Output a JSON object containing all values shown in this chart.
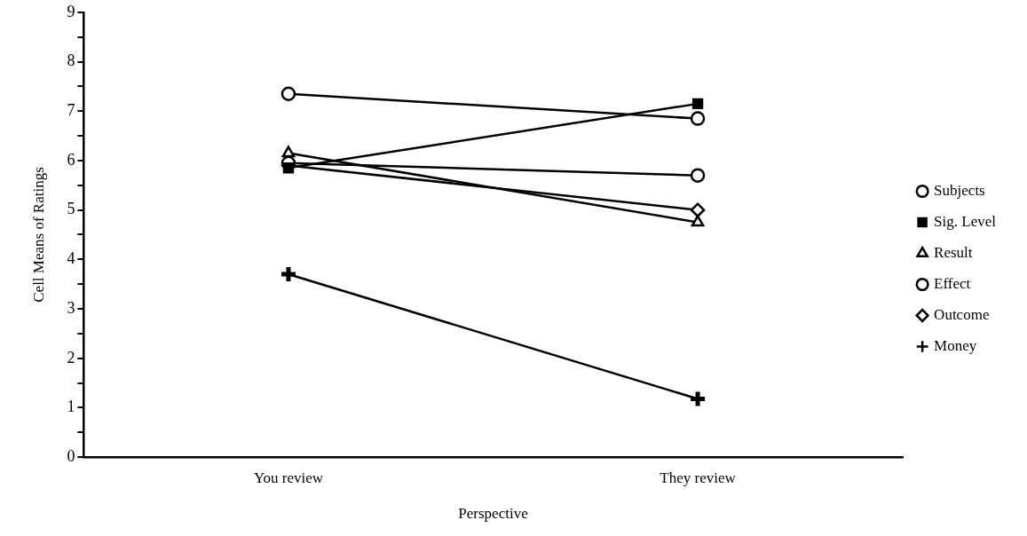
{
  "chart_data": {
    "type": "line",
    "xlabel": "Perspective",
    "ylabel": "Cell Means of Ratings",
    "categories": [
      "You review",
      "They review"
    ],
    "series": [
      {
        "name": "Subjects",
        "color": "#000000",
        "marker": "circle",
        "values": [
          7.35,
          6.85
        ]
      },
      {
        "name": "Sig. Level",
        "color": "#000000",
        "marker": "square",
        "values": [
          5.85,
          7.15
        ]
      },
      {
        "name": "Result",
        "color": "#000000",
        "marker": "triangle",
        "values": [
          6.15,
          4.75
        ]
      },
      {
        "name": "Effect",
        "color": "#000000",
        "marker": "circle",
        "values": [
          5.95,
          5.7
        ]
      },
      {
        "name": "Outcome",
        "color": "#000000",
        "marker": "diamond",
        "values": [
          5.9,
          5.0
        ]
      },
      {
        "name": "Money",
        "color": "#000000",
        "marker": "cross",
        "values": [
          3.7,
          1.18
        ]
      }
    ],
    "ylim": [
      0,
      9
    ],
    "yticks": [
      0,
      {
        "value": 0.5,
        "label": null
      },
      1,
      {
        "value": 1.5,
        "label": null
      },
      2,
      {
        "value": 2.5,
        "label": null
      },
      3,
      {
        "value": 3.5,
        "label": null
      },
      4,
      {
        "value": 4.5,
        "label": null
      },
      5,
      {
        "value": 5.5,
        "label": null
      },
      6,
      {
        "value": 6.5,
        "label": null
      },
      7,
      {
        "value": 7.5,
        "label": null
      },
      8,
      {
        "value": 8.5,
        "label": null
      },
      9
    ],
    "grid": false,
    "legend": "right",
    "line_style": "solid"
  }
}
